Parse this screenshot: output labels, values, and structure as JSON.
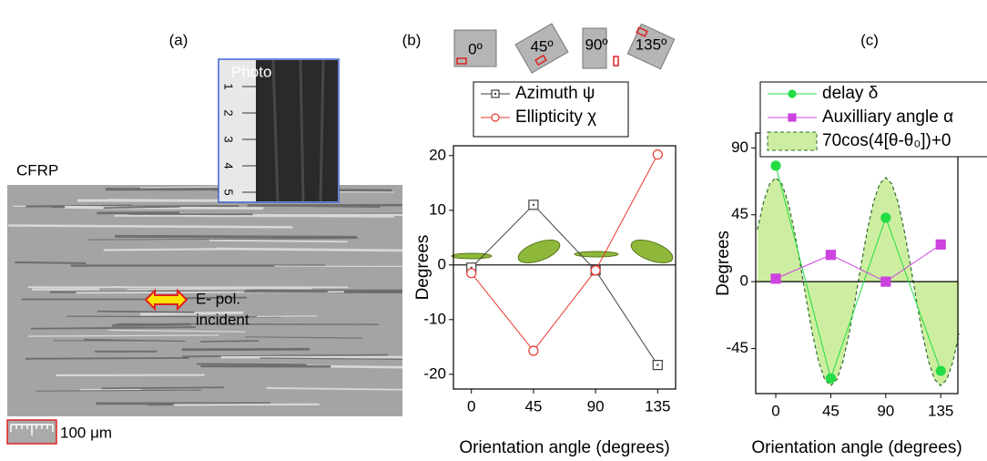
{
  "panel_a": {
    "label": "(a)",
    "photo_label": "Photo",
    "ruler_numbers": [
      1,
      2,
      3,
      4,
      5
    ],
    "material": "CFRP",
    "polarization_label": [
      "E- pol.",
      "incident"
    ],
    "scale_bar": "100 μm"
  },
  "chart_data": [
    {
      "type": "line",
      "title": "(b)",
      "inset_labels": [
        "0º",
        "45º",
        "90º",
        "135º"
      ],
      "x": [
        0,
        45,
        90,
        135
      ],
      "series": [
        {
          "name": "Azimuth ψ",
          "color": "#404040",
          "marker": "square",
          "values": [
            -0.5,
            11,
            -1,
            -18.3
          ]
        },
        {
          "name": "Ellipticity χ",
          "color": "#e8382f",
          "marker": "circle",
          "values": [
            -1.5,
            -15.7,
            -1,
            20.2
          ]
        }
      ],
      "xlim": [
        -13,
        148
      ],
      "ylim": [
        -22.7,
        21.8
      ],
      "xticks": [
        0,
        45,
        90,
        135
      ],
      "yticks": [
        -20,
        -10,
        0,
        10,
        20
      ],
      "xlabel": "Orientation angle (degrees)",
      "ylabel": "Degrees"
    },
    {
      "type": "line",
      "title": "(c)",
      "x": [
        0,
        45,
        90,
        135
      ],
      "series": [
        {
          "name": "delay δ",
          "color": "#22dd44",
          "marker": "circle-filled",
          "values": [
            78,
            -65,
            43,
            -60
          ]
        },
        {
          "name": "Auxilliary angle α",
          "color": "#cc44dd",
          "marker": "square-filled",
          "values": [
            2,
            18,
            0,
            25
          ]
        },
        {
          "name": "70cos(4[θ-θ₀])+0",
          "color": "#2e6b2e",
          "fill": "#cdeea0",
          "style": "area",
          "x": [
            -15,
            -10,
            -5,
            0,
            5,
            10,
            15,
            20,
            25,
            30,
            35,
            40,
            45,
            50,
            55,
            60,
            65,
            70,
            75,
            80,
            85,
            90,
            95,
            100,
            105,
            110,
            115,
            120,
            125,
            130,
            135,
            140,
            145,
            150
          ],
          "values": [
            35,
            53.6,
            65.8,
            70,
            65.8,
            53.6,
            35,
            12.2,
            -12.2,
            -35,
            -53.6,
            -65.8,
            -70,
            -65.8,
            -53.6,
            -35,
            -12.2,
            12.2,
            35,
            53.6,
            65.8,
            70,
            65.8,
            53.6,
            35,
            12.2,
            -12.2,
            -35,
            -53.6,
            -65.8,
            -70,
            -65.8,
            -53.6,
            -35
          ]
        }
      ],
      "xlim": [
        -16.4,
        149
      ],
      "ylim": [
        -75.3,
        100
      ],
      "xticks": [
        0,
        45,
        90,
        135
      ],
      "yticks": [
        -45,
        0,
        45,
        90
      ],
      "xlabel": "Orientation angle (degrees)",
      "ylabel": "Degrees"
    }
  ]
}
